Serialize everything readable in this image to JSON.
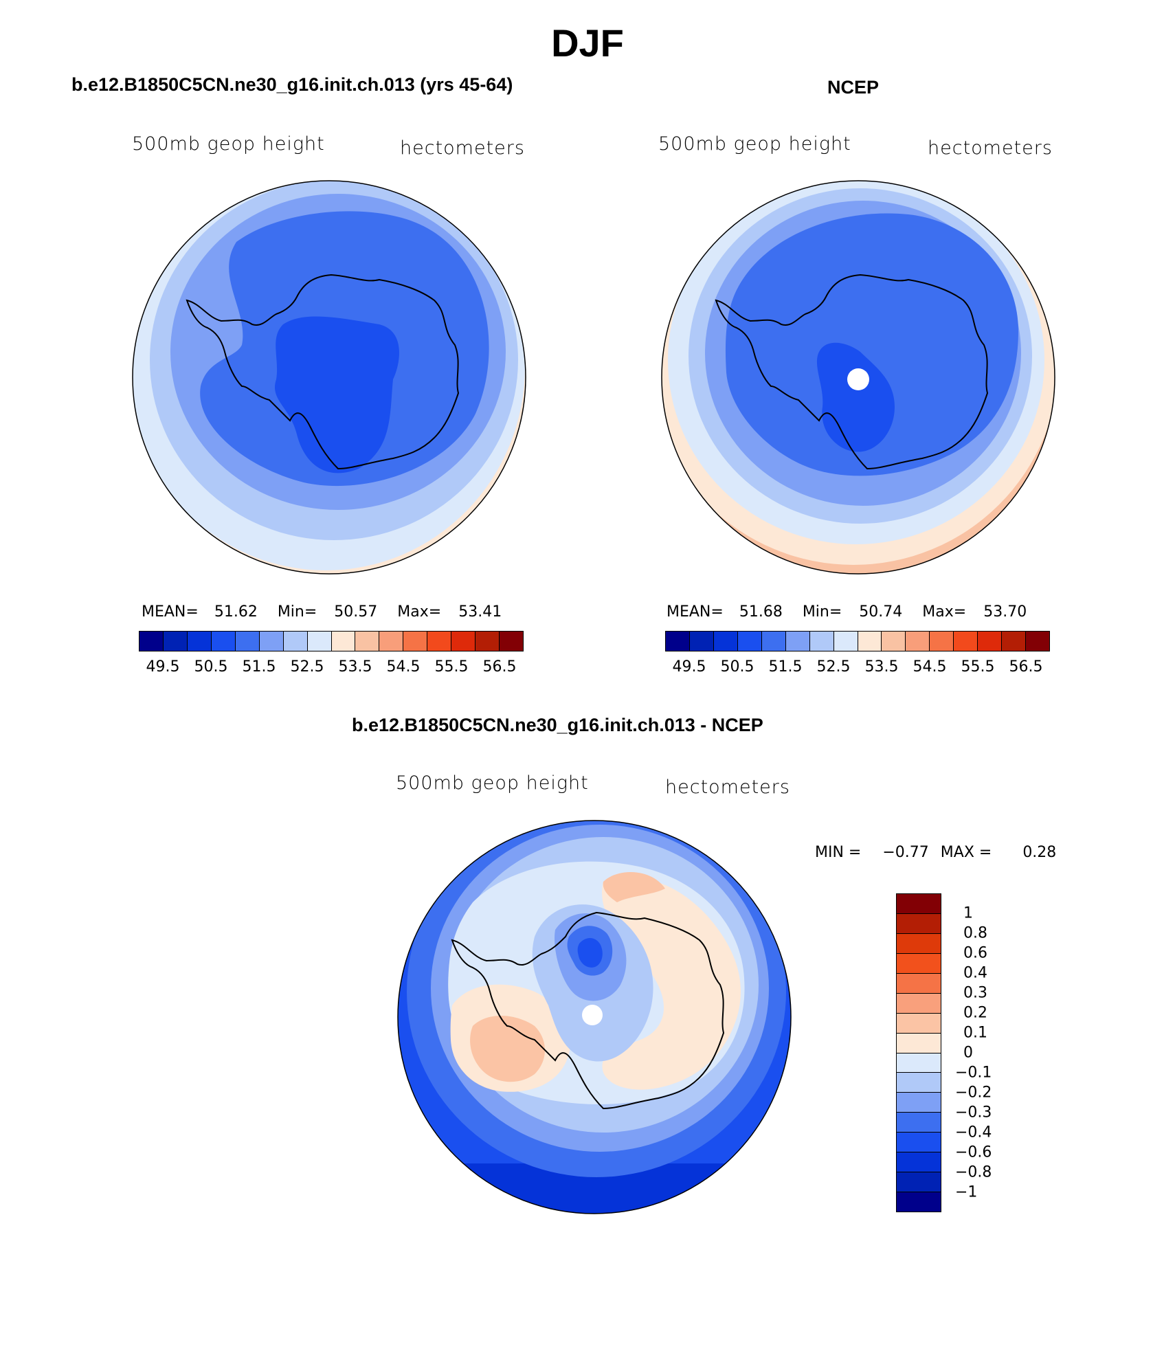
{
  "figure": {
    "title": "DJF"
  },
  "panels": [
    {
      "title": "b.e12.B1850C5CN.ne30_g16.init.ch.013 (yrs 45-64)",
      "field_label": "500mb geop height",
      "units": "hectometers",
      "stats": {
        "mean_label": "MEAN=",
        "mean": "51.62",
        "min_label": "Min=",
        "min": "50.57",
        "max_label": "Max=",
        "max": "53.41"
      }
    },
    {
      "title": "NCEP",
      "field_label": "500mb geop height",
      "units": "hectometers",
      "stats": {
        "mean_label": "MEAN=",
        "mean": "51.68",
        "min_label": "Min=",
        "min": "50.74",
        "max_label": "Max=",
        "max": "53.70"
      }
    },
    {
      "title": "b.e12.B1850C5CN.ne30_g16.init.ch.013 - NCEP",
      "field_label": "500mb geop height",
      "units": "hectometers",
      "stats": {
        "min_label": "MIN =",
        "min": "−0.77",
        "max_label": "MAX =",
        "max": "0.28"
      }
    }
  ],
  "colorbar_abs": {
    "colors": [
      "#00008b",
      "#0022b4",
      "#0533d8",
      "#1a4fef",
      "#3d6ff0",
      "#7ea0f5",
      "#b0c9f8",
      "#dbe9fb",
      "#fde8d6",
      "#f9c2a3",
      "#f89e7a",
      "#f57346",
      "#f24a1c",
      "#de2a0a",
      "#b31e05",
      "#820005"
    ],
    "labels": [
      "49.5",
      "50.5",
      "51.5",
      "52.5",
      "53.5",
      "54.5",
      "55.5",
      "56.5"
    ]
  },
  "colorbar_diff": {
    "colors": [
      "#820005",
      "#b31e05",
      "#de3a0a",
      "#f2511c",
      "#f57346",
      "#f9a07c",
      "#fbc4a5",
      "#fde8d6",
      "#dbe9fb",
      "#b0c9f8",
      "#7ea0f5",
      "#3d6ff0",
      "#1a4fef",
      "#0533d8",
      "#0022b4",
      "#00008b"
    ],
    "labels": [
      "1",
      "0.8",
      "0.6",
      "0.4",
      "0.3",
      "0.2",
      "0.1",
      "0",
      "−0.1",
      "−0.2",
      "−0.3",
      "−0.4",
      "−0.6",
      "−0.8",
      "−1"
    ]
  },
  "map_colors": {
    "abs": [
      "#fde8d6",
      "#dbe9fb",
      "#b0c9f8",
      "#7ea0f5",
      "#3d6ff0",
      "#1a4fef"
    ],
    "diff_outer": [
      "#1a4fef",
      "#3d6ff0",
      "#7ea0f5",
      "#b0c9f8",
      "#dbe9fb"
    ],
    "diff_warm": [
      "#fde8d6",
      "#fbc4a5",
      "#f9a07c"
    ],
    "diff_cool": [
      "#b0c9f8",
      "#7ea0f5",
      "#3d6ff0",
      "#1a4fef"
    ],
    "missing": "#ffffff",
    "coast": "#000000"
  }
}
